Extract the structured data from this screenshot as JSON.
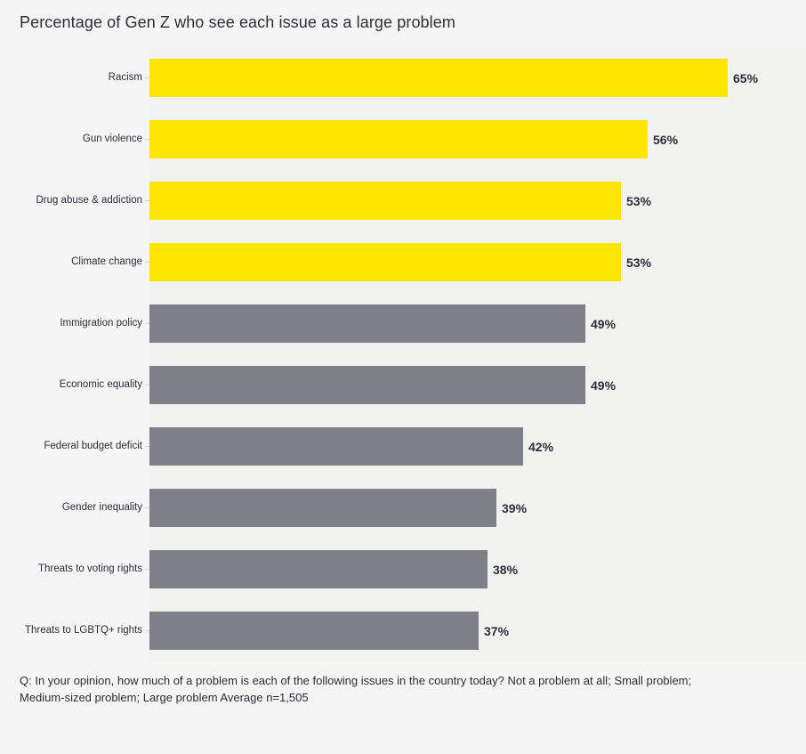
{
  "page": {
    "title": "Percentage of Gen Z who see each issue as a large problem",
    "footnote_line1": "Q: In your opinion, how much of a problem is each of the following issues in the country today? Not a problem at all; Small problem;",
    "footnote_line2": "Medium-sized problem; Large problem Average n=1,505"
  },
  "chart_data": {
    "type": "bar",
    "orientation": "horizontal",
    "title": "Percentage of Gen Z who see each issue as a large problem",
    "xlabel": "",
    "ylabel": "",
    "xlim": [
      0,
      74
    ],
    "grid": false,
    "legend": false,
    "categories": [
      "Racism",
      "Gun violence",
      "Drug abuse & addiction",
      "Climate change",
      "Immigration policy",
      "Economic equality",
      "Federal budget deficit",
      "Gender inequality",
      "Threats to voting rights",
      "Threats to LGBTQ+ rights"
    ],
    "values": [
      65,
      56,
      53,
      53,
      49,
      49,
      42,
      39,
      38,
      37
    ],
    "value_labels": [
      "65%",
      "56%",
      "53%",
      "53%",
      "49%",
      "49%",
      "42%",
      "39%",
      "38%",
      "37%"
    ],
    "bar_colors": [
      "highlight",
      "highlight",
      "highlight",
      "highlight",
      "base",
      "base",
      "base",
      "base",
      "base",
      "base"
    ],
    "colors": {
      "highlight": "#ffe600",
      "base": "#7f7f88",
      "text": "#2e2e38",
      "background": "#f5f5f6",
      "plot_background": "#f2f2f1",
      "tick": "#d6d6d6"
    },
    "footnote": "Q: In your opinion, how much of a problem is each of the following issues in the country today? Not a problem at all; Small problem; Medium-sized problem; Large problem Average n=1,505"
  }
}
